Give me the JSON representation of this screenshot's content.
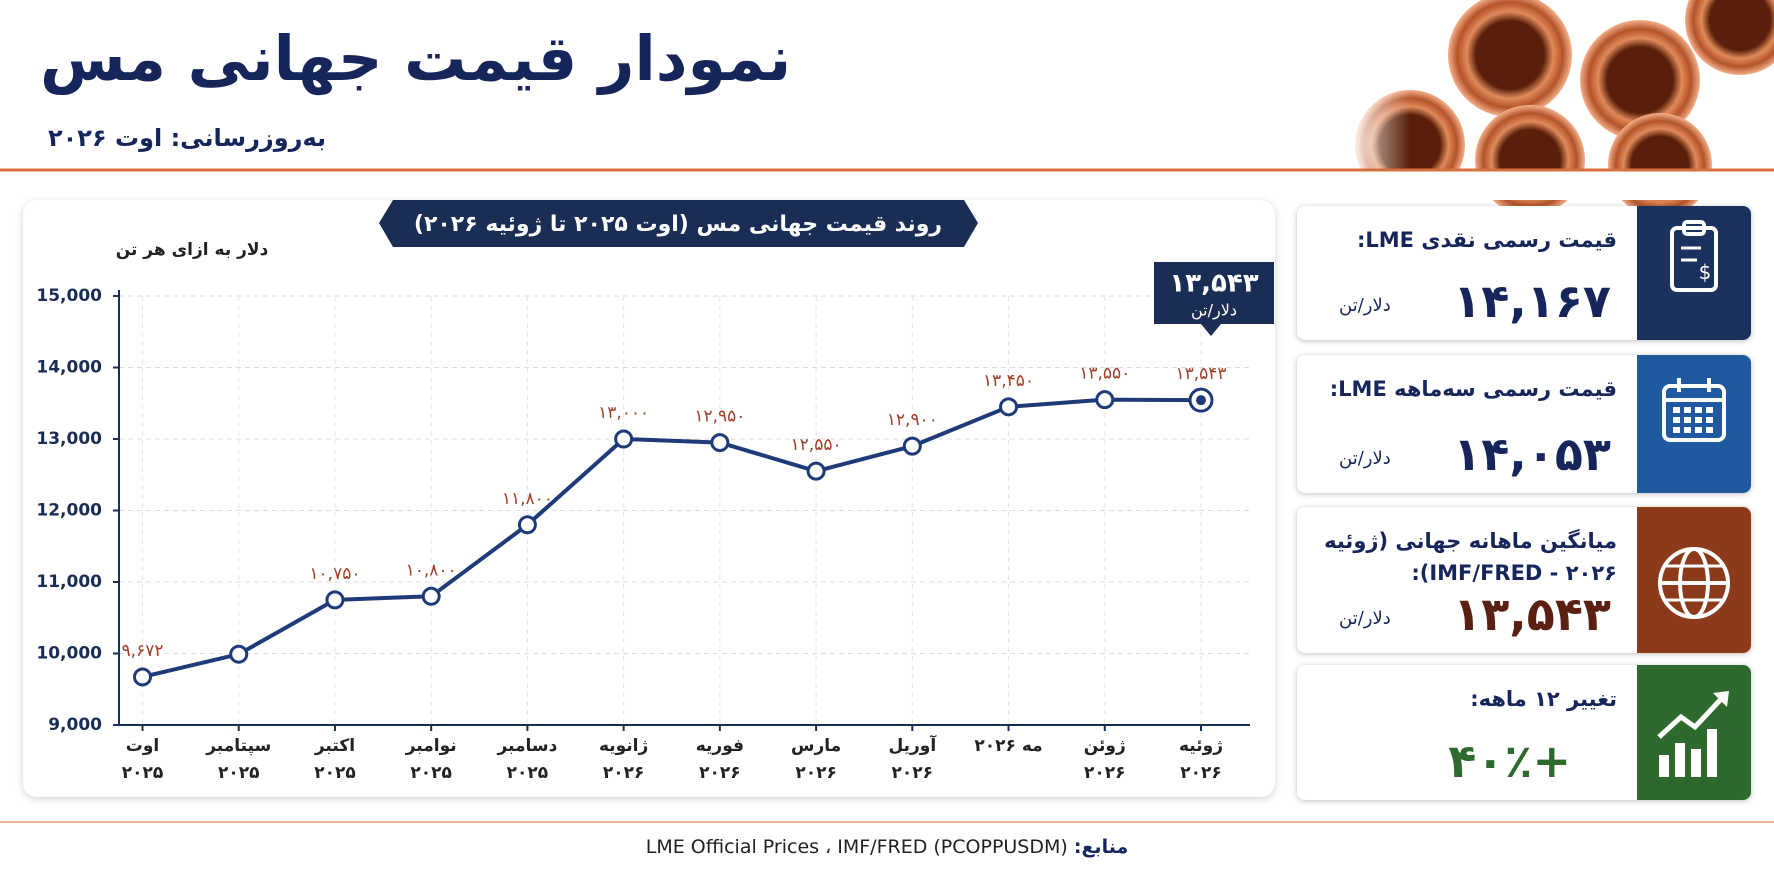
{
  "header": {
    "title": "نمودار قیمت جهانی مس",
    "subtitle": "به‌روزرسانی: اوت ۲۰۲۶"
  },
  "chart_data": {
    "type": "line",
    "title": "روند قیمت جهانی مس (اوت ۲۰۲۵ تا ژوئیه ۲۰۲۶)",
    "y_label": "دلار به ازای هر تن",
    "categories": [
      "اوت ۲۰۲۵",
      "سپتامبر ۲۰۲۵",
      "اکتبر ۲۰۲۵",
      "نوامبر ۲۰۲۵",
      "دسامبر ۲۰۲۵",
      "ژانویه ۲۰۲۶",
      "فوریه ۲۰۲۶",
      "مارس ۲۰۲۶",
      "آوریل ۲۰۲۶",
      "مه ۲۰۲۶",
      "ژوئن ۲۰۲۶",
      "ژوئیه ۲۰۲۶"
    ],
    "values": [
      9672,
      9990,
      10750,
      10800,
      11800,
      13000,
      12950,
      12550,
      12900,
      13450,
      13550,
      13543
    ],
    "value_labels": [
      "۹,۶۷۲",
      null,
      "۱۰,۷۵۰",
      "۱۰,۸۰۰",
      "۱۱,۸۰۰",
      "۱۳,۰۰۰",
      "۱۲,۹۵۰",
      "۱۲,۵۵۰",
      "۱۲,۹۰۰",
      "۱۳,۴۵۰",
      "۱۳,۵۵۰",
      "۱۳,۵۴۳"
    ],
    "color": "#1e3a78",
    "label_color": "#a0402a",
    "ylim": [
      9000,
      15000
    ],
    "yticks": [
      {
        "value": 9000,
        "label": "9,000"
      },
      {
        "value": 10000,
        "label": "10,000"
      },
      {
        "value": 11000,
        "label": "11,000"
      },
      {
        "value": 12000,
        "label": "12,000"
      },
      {
        "value": 13000,
        "label": "13,000"
      },
      {
        "value": 14000,
        "label": "14,000"
      },
      {
        "value": 15000,
        "label": "15,000"
      }
    ],
    "grid": true,
    "callout": {
      "label": "۱۳,۵۴۳",
      "unit": "دلار/تن"
    }
  },
  "cards": [
    {
      "title": "قیمت رسمی نقدی LME:",
      "value": "۱۴,۱۶۷",
      "unit": "دلار/تن"
    },
    {
      "title": "قیمت رسمی سه‌ماهه LME:",
      "value": "۱۴,۰۵۳",
      "unit": "دلار/تن"
    },
    {
      "title": "میانگین ماهانه جهانی (ژوئیه ۲۰۲۶ - IMF/FRED):",
      "value": "۱۳,۵۴۳",
      "unit": "دلار/تن"
    },
    {
      "title": "تغییر ۱۲ ماهه:",
      "value": "+۴۰٪"
    }
  ],
  "footer": {
    "label": "منابع:",
    "text": "LME Official Prices ، IMF/FRED (PCOPPUSDM)"
  }
}
